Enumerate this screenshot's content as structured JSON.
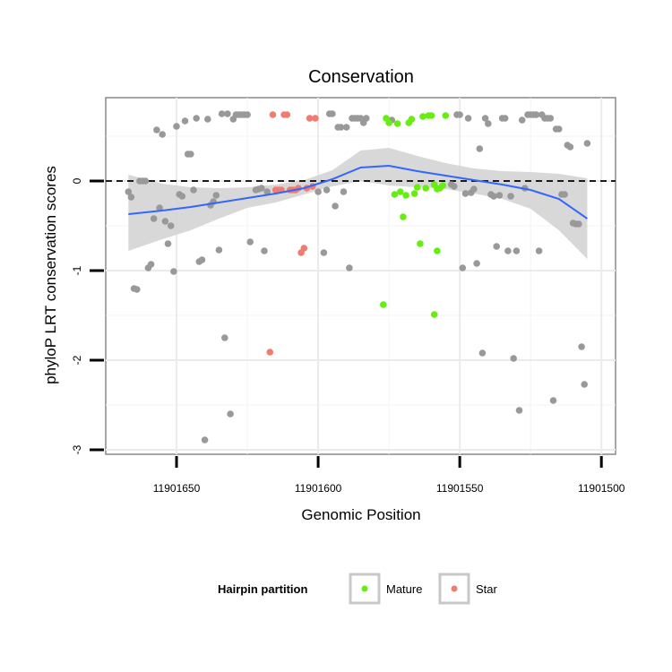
{
  "chart_data": {
    "type": "scatter",
    "title": "Conservation",
    "xlabel": "Genomic Position",
    "ylabel": "phyloP LRT conservation scores",
    "xlim": [
      11901675,
      11901495
    ],
    "x_reversed": true,
    "ylim": [
      -3.05,
      0.93
    ],
    "x_ticks": [
      11901650,
      11901600,
      11901550,
      11901500
    ],
    "x_tick_labels": [
      "11901650",
      "11901600",
      "11901550",
      "11901500"
    ],
    "y_ticks": [
      0,
      -1,
      -2,
      -3
    ],
    "y_tick_labels": [
      "0",
      "-1",
      "-2",
      "-3"
    ],
    "grid": true,
    "reference_line": {
      "y": 0,
      "style": "dashed"
    },
    "legend": {
      "title": "Hairpin partition",
      "position": "bottom",
      "entries": [
        {
          "label": "Mature",
          "color": "#66ee11"
        },
        {
          "label": "Star",
          "color": "#ef7c6e"
        }
      ]
    },
    "colors": {
      "other": "#999999",
      "Mature": "#66ee11",
      "Star": "#ef7c6e",
      "smooth": "#3366ff",
      "ribbon": "#d4d4d4"
    },
    "series": [
      {
        "name": "Other",
        "points": [
          [
            11901667,
            -0.12
          ],
          [
            11901666,
            -0.18
          ],
          [
            11901665,
            -1.2
          ],
          [
            11901664,
            -1.21
          ],
          [
            11901663,
            0
          ],
          [
            11901662,
            0
          ],
          [
            11901661,
            0
          ],
          [
            11901660,
            -0.97
          ],
          [
            11901659,
            -0.93
          ],
          [
            11901658,
            -0.42
          ],
          [
            11901657,
            0.57
          ],
          [
            11901656,
            -0.3
          ],
          [
            11901655,
            0.52
          ],
          [
            11901654,
            -0.45
          ],
          [
            11901653,
            -0.7
          ],
          [
            11901652,
            -0.5
          ],
          [
            11901651,
            -1.01
          ],
          [
            11901650,
            0.61
          ],
          [
            11901649,
            -0.15
          ],
          [
            11901648,
            -0.17
          ],
          [
            11901647,
            0.67
          ],
          [
            11901646,
            0.3
          ],
          [
            11901645,
            0.3
          ],
          [
            11901644,
            -0.1
          ],
          [
            11901643,
            0.7
          ],
          [
            11901642,
            -0.9
          ],
          [
            11901641,
            -0.88
          ],
          [
            11901640,
            -2.89
          ],
          [
            11901639,
            0.69
          ],
          [
            11901638,
            -0.27
          ],
          [
            11901637,
            -0.23
          ],
          [
            11901636,
            -0.16
          ],
          [
            11901635,
            -0.77
          ],
          [
            11901634,
            0.75
          ],
          [
            11901633,
            -1.75
          ],
          [
            11901632,
            0.75
          ],
          [
            11901631,
            -2.6
          ],
          [
            11901630,
            0.69
          ],
          [
            11901629,
            0.74
          ],
          [
            11901628,
            0.74
          ],
          [
            11901627,
            0.74
          ],
          [
            11901626,
            0.74
          ],
          [
            11901625,
            0.74
          ],
          [
            11901624,
            -0.68
          ],
          [
            11901622,
            -0.1
          ],
          [
            11901621,
            -0.09
          ],
          [
            11901620,
            -0.08
          ],
          [
            11901619,
            -0.78
          ],
          [
            11901618,
            -0.12
          ],
          [
            11901600,
            -0.12
          ],
          [
            11901598,
            -0.8
          ],
          [
            11901597,
            -0.1
          ],
          [
            11901596,
            0.75
          ],
          [
            11901595,
            0.75
          ],
          [
            11901594,
            -0.28
          ],
          [
            11901593,
            0.6
          ],
          [
            11901592,
            0.6
          ],
          [
            11901591,
            -0.12
          ],
          [
            11901590,
            0.6
          ],
          [
            11901589,
            -0.97
          ],
          [
            11901588,
            0.7
          ],
          [
            11901587,
            0.7
          ],
          [
            11901586,
            0.7
          ],
          [
            11901585,
            0.7
          ],
          [
            11901584,
            0.65
          ],
          [
            11901583,
            0.7
          ],
          [
            11901574,
            0.68
          ],
          [
            11901553,
            -0.04
          ],
          [
            11901552,
            -0.06
          ],
          [
            11901551,
            0.74
          ],
          [
            11901550,
            0.74
          ],
          [
            11901549,
            -0.97
          ],
          [
            11901548,
            -0.14
          ],
          [
            11901547,
            0.7
          ],
          [
            11901546,
            -0.13
          ],
          [
            11901545,
            -0.09
          ],
          [
            11901544,
            -0.92
          ],
          [
            11901543,
            0.36
          ],
          [
            11901542,
            -1.92
          ],
          [
            11901541,
            0.7
          ],
          [
            11901540,
            0.64
          ],
          [
            11901539,
            -0.15
          ],
          [
            11901538,
            -0.17
          ],
          [
            11901537,
            -0.73
          ],
          [
            11901536,
            -0.16
          ],
          [
            11901535,
            0.7
          ],
          [
            11901534,
            0.7
          ],
          [
            11901533,
            -0.78
          ],
          [
            11901532,
            -0.17
          ],
          [
            11901531,
            -1.98
          ],
          [
            11901530,
            -0.78
          ],
          [
            11901529,
            -2.56
          ],
          [
            11901528,
            0.68
          ],
          [
            11901527,
            -0.08
          ],
          [
            11901526,
            0.74
          ],
          [
            11901525,
            0.74
          ],
          [
            11901524,
            0.74
          ],
          [
            11901523,
            0.74
          ],
          [
            11901522,
            -0.78
          ],
          [
            11901521,
            0.74
          ],
          [
            11901520,
            0.7
          ],
          [
            11901519,
            0.7
          ],
          [
            11901518,
            0.7
          ],
          [
            11901517,
            -2.45
          ],
          [
            11901516,
            0.58
          ],
          [
            11901515,
            0.58
          ],
          [
            11901514,
            -0.15
          ],
          [
            11901513,
            -0.15
          ],
          [
            11901512,
            0.4
          ],
          [
            11901511,
            0.38
          ],
          [
            11901510,
            -0.47
          ],
          [
            11901509,
            -0.48
          ],
          [
            11901508,
            -0.48
          ],
          [
            11901507,
            -1.85
          ],
          [
            11901506,
            -2.27
          ],
          [
            11901505,
            0.42
          ]
        ]
      },
      {
        "name": "Mature",
        "points": [
          [
            11901577,
            -1.38
          ],
          [
            11901576,
            0.7
          ],
          [
            11901575,
            0.65
          ],
          [
            11901573,
            -0.15
          ],
          [
            11901572,
            0.64
          ],
          [
            11901571,
            -0.12
          ],
          [
            11901570,
            -0.4
          ],
          [
            11901569,
            -0.16
          ],
          [
            11901568,
            0.65
          ],
          [
            11901567,
            0.69
          ],
          [
            11901566,
            -0.14
          ],
          [
            11901565,
            -0.07
          ],
          [
            11901564,
            -0.7
          ],
          [
            11901563,
            0.72
          ],
          [
            11901562,
            -0.08
          ],
          [
            11901561,
            0.73
          ],
          [
            11901560,
            0.73
          ],
          [
            11901559,
            -0.04
          ],
          [
            11901558,
            -0.09
          ],
          [
            11901557,
            -0.08
          ],
          [
            11901559,
            -1.49
          ],
          [
            11901558,
            -0.78
          ],
          [
            11901556,
            -0.05
          ],
          [
            11901555,
            0.73
          ]
        ]
      },
      {
        "name": "Star",
        "points": [
          [
            11901617,
            -1.91
          ],
          [
            11901616,
            0.74
          ],
          [
            11901615,
            -0.1
          ],
          [
            11901614,
            -0.1
          ],
          [
            11901613,
            -0.1
          ],
          [
            11901612,
            0.74
          ],
          [
            11901611,
            0.74
          ],
          [
            11901610,
            -0.1
          ],
          [
            11901609,
            -0.1
          ],
          [
            11901608,
            -0.1
          ],
          [
            11901607,
            -0.08
          ],
          [
            11901606,
            -0.8
          ],
          [
            11901605,
            -0.75
          ],
          [
            11901604,
            -0.08
          ],
          [
            11901603,
            0.7
          ],
          [
            11901602,
            -0.06
          ],
          [
            11901601,
            0.7
          ]
        ]
      }
    ],
    "smooth": {
      "x": [
        11901667,
        11901655,
        11901645,
        11901635,
        11901625,
        11901615,
        11901605,
        11901595,
        11901585,
        11901575,
        11901565,
        11901555,
        11901545,
        11901535,
        11901525,
        11901515,
        11901505
      ],
      "y": [
        -0.37,
        -0.33,
        -0.29,
        -0.24,
        -0.19,
        -0.14,
        -0.08,
        0.02,
        0.15,
        0.17,
        0.11,
        0.06,
        0.01,
        -0.04,
        -0.1,
        -0.2,
        -0.42
      ],
      "lower": [
        -0.78,
        -0.65,
        -0.55,
        -0.42,
        -0.3,
        -0.24,
        -0.15,
        -0.06,
        0.0,
        -0.05,
        -0.07,
        -0.09,
        -0.14,
        -0.2,
        -0.31,
        -0.55,
        -0.87
      ],
      "upper": [
        0.07,
        -0.03,
        -0.07,
        -0.08,
        -0.07,
        -0.04,
        0.01,
        0.12,
        0.34,
        0.37,
        0.28,
        0.2,
        0.14,
        0.11,
        0.1,
        0.08,
        0.03
      ]
    }
  }
}
